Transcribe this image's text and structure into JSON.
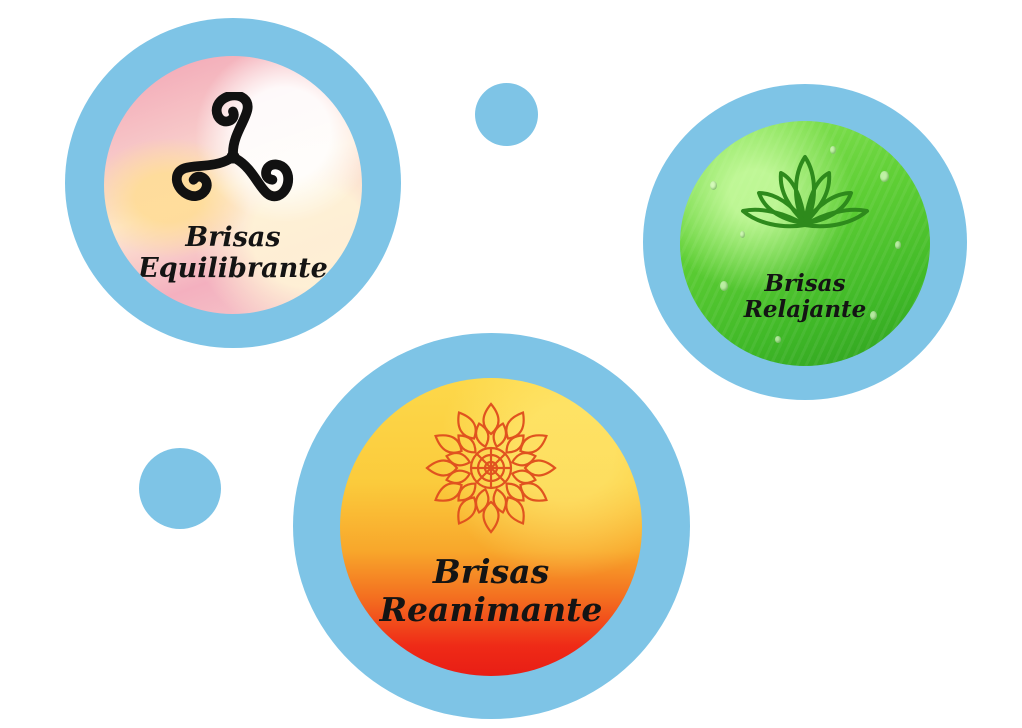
{
  "bubbles": {
    "equilibrante": {
      "line1": "Brisas",
      "line2": "Equilibrante",
      "icon": "triskelion-icon"
    },
    "relajante": {
      "line1": "Brisas",
      "line2": "Relajante",
      "icon": "lotus-icon"
    },
    "reanimante": {
      "line1": "Brisas",
      "line2": "Reanimante",
      "icon": "mandala-icon"
    }
  },
  "colors": {
    "ring": "#7ec4e6",
    "equilibrante_bg": "#f4b0bf",
    "relajante_bg": "#5fcf35",
    "reanimante_top": "#fdd84a",
    "reanimante_bottom": "#e81e15",
    "mandala": "#e0531f",
    "lotus": "#2e8a1c"
  }
}
